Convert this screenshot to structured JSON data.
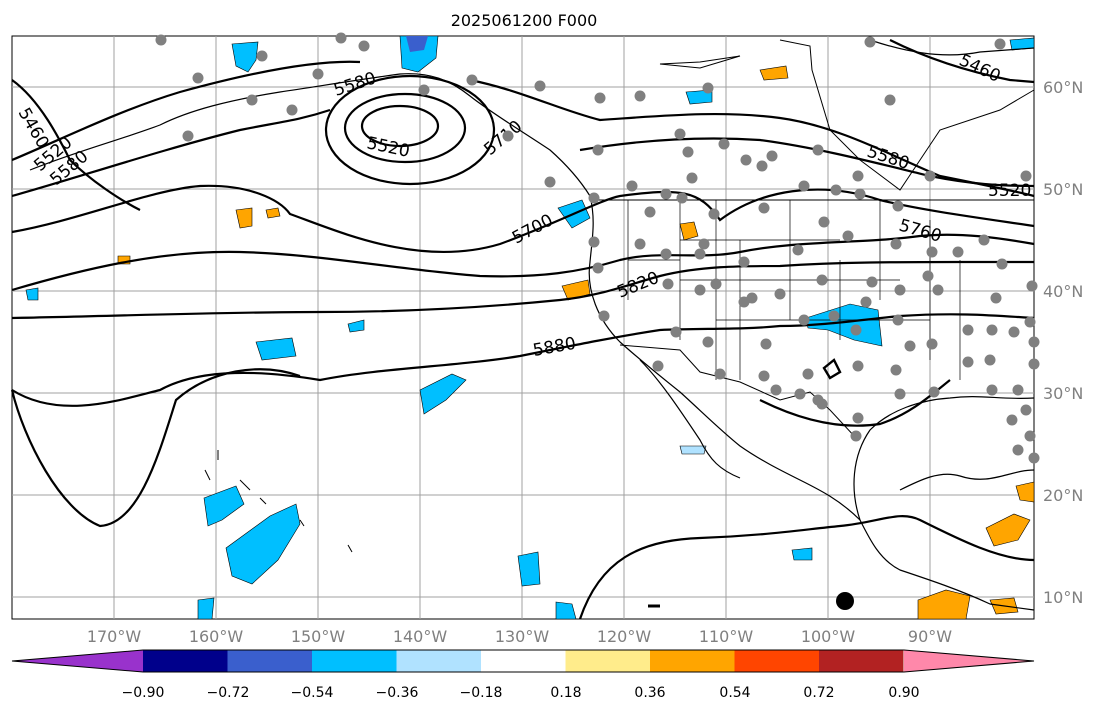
{
  "title": "2025061200 F000",
  "lon_labels": [
    "170°W",
    "160°W",
    "150°W",
    "140°W",
    "130°W",
    "120°W",
    "110°W",
    "100°W",
    "90°W"
  ],
  "lat_labels": [
    "60°N",
    "50°N",
    "40°N",
    "30°N",
    "20°N",
    "10°N"
  ],
  "contour_labels": [
    "5460",
    "5460",
    "5520",
    "5520",
    "5580",
    "5580",
    "5520",
    "5580",
    "5700",
    "5760",
    "5820",
    "5880",
    "5710",
    "5520"
  ],
  "colorbar": {
    "colors": [
      "#9932CC",
      "#00008B",
      "#3A5FCD",
      "#00BFFF",
      "#B0E2FF",
      "#FFFFFF",
      "#FFEC8B",
      "#FFA500",
      "#FF4500",
      "#B22222",
      "#FF88AA"
    ],
    "tick_labels": [
      "−0.90",
      "−0.72",
      "−0.54",
      "−0.36",
      "−0.18",
      "0.18",
      "0.36",
      "0.54",
      "0.72",
      "0.90"
    ]
  },
  "colors": {
    "station": "#808080",
    "contour": "#000000",
    "grid": "#a0a0a0"
  }
}
